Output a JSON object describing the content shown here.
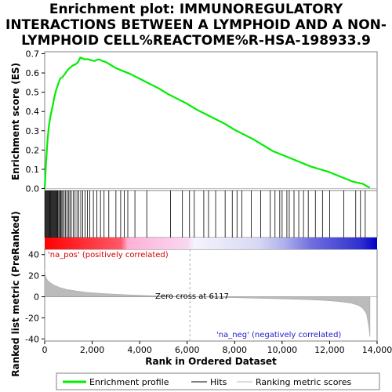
{
  "chart_data": {
    "type": "line",
    "title_lines": [
      "Enrichment plot: IMMUNOREGULATORY",
      "INTERACTIONS BETWEEN A LYMPHOID AND A NON-",
      "LYMPHOID CELL%REACTOME%R-HSA-198933.9"
    ],
    "xlabel": "Rank in Ordered Dataset",
    "ylabel_top": "Enrichment score (ES)",
    "ylabel_bottom": "Ranked list metric (PreRanked)",
    "xlim": [
      0,
      14000
    ],
    "x_ticks": [
      0,
      2000,
      4000,
      6000,
      8000,
      10000,
      12000,
      14000
    ],
    "x_tick_labels": [
      "0",
      "2,000",
      "4,000",
      "6,000",
      "8,000",
      "10,000",
      "12,000",
      "14,000"
    ],
    "es_ylim": [
      -0.01,
      0.71
    ],
    "es_ticks": [
      0.0,
      0.1,
      0.2,
      0.3,
      0.4,
      0.5,
      0.6,
      0.7
    ],
    "es_tick_labels": [
      "0.0",
      "0.1",
      "0.2",
      "0.3",
      "0.4",
      "0.5",
      "0.6",
      "0.7"
    ],
    "metric_ylim": [
      -42,
      45
    ],
    "metric_ticks": [
      40,
      20,
      0,
      -20,
      -40
    ],
    "metric_tick_labels": [
      "40",
      "20",
      "0",
      "-20",
      "-40"
    ],
    "series": [
      {
        "name": "Enrichment profile",
        "color": "#00ee00",
        "x": [
          0,
          60,
          120,
          180,
          250,
          320,
          400,
          480,
          560,
          650,
          760,
          880,
          1000,
          1100,
          1200,
          1300,
          1400,
          1500,
          1600,
          1700,
          1800,
          1900,
          2000,
          2100,
          2200,
          2300,
          2400,
          2600,
          2800,
          3000,
          3200,
          3400,
          3600,
          4000,
          4400,
          4800,
          5200,
          5600,
          6000,
          6400,
          6800,
          7200,
          7600,
          8000,
          8400,
          8800,
          9200,
          9600,
          10000,
          10400,
          10800,
          11200,
          11600,
          12000,
          12400,
          12800,
          13000,
          13200,
          13400,
          13600,
          13700
        ],
        "y": [
          0.0,
          0.14,
          0.25,
          0.33,
          0.38,
          0.42,
          0.47,
          0.51,
          0.54,
          0.57,
          0.58,
          0.6,
          0.62,
          0.63,
          0.64,
          0.645,
          0.655,
          0.68,
          0.675,
          0.67,
          0.672,
          0.668,
          0.665,
          0.662,
          0.668,
          0.67,
          0.664,
          0.655,
          0.64,
          0.625,
          0.615,
          0.605,
          0.595,
          0.57,
          0.545,
          0.52,
          0.49,
          0.465,
          0.44,
          0.41,
          0.385,
          0.36,
          0.335,
          0.305,
          0.28,
          0.255,
          0.225,
          0.195,
          0.175,
          0.155,
          0.135,
          0.115,
          0.1,
          0.085,
          0.065,
          0.045,
          0.035,
          0.03,
          0.025,
          0.01,
          0.005
        ]
      },
      {
        "name": "Hits",
        "color": "#000000",
        "positions": [
          20,
          50,
          80,
          110,
          140,
          170,
          200,
          230,
          260,
          290,
          320,
          350,
          380,
          410,
          440,
          470,
          500,
          530,
          560,
          600,
          640,
          680,
          720,
          760,
          820,
          880,
          940,
          1000,
          1060,
          1120,
          1200,
          1280,
          1360,
          1440,
          1520,
          1600,
          1700,
          1800,
          1900,
          2050,
          2200,
          2350,
          2500,
          2700,
          3000,
          3200,
          3350,
          3500,
          3800,
          4300,
          5300,
          5800,
          6100,
          6300,
          6700,
          6900,
          7200,
          7600,
          7900,
          8100,
          8300,
          8700,
          9100,
          9500,
          9700,
          9900,
          10000,
          10200,
          10300,
          10500,
          10700,
          10900,
          11100,
          11400,
          11700,
          12000,
          12600,
          13100,
          13300,
          13500
        ]
      },
      {
        "name": "Ranking metric scores",
        "color": "#bbbbbb",
        "x": [
          0,
          30,
          80,
          150,
          250,
          400,
          600,
          900,
          1300,
          1800,
          2500,
          3500,
          4500,
          5500,
          6117,
          7000,
          8000,
          9000,
          10000,
          11000,
          11800,
          12400,
          12900,
          13200,
          13400,
          13550,
          13650,
          13700
        ],
        "y": [
          26,
          20,
          17,
          15,
          13,
          11,
          9,
          7,
          5.5,
          4,
          3,
          1.8,
          1.0,
          0.4,
          0,
          -0.4,
          -0.9,
          -1.4,
          -2.0,
          -2.7,
          -3.5,
          -4.5,
          -6,
          -8,
          -11,
          -16,
          -28,
          -38
        ]
      }
    ],
    "zero_cross_label": "Zero cross at 6117",
    "zero_cross_x": 6117,
    "pos_label": "'na_pos' (positively correlated)",
    "neg_label": "'na_neg' (negatively correlated)",
    "legend": {
      "placement": "bottom",
      "items": [
        "Enrichment profile",
        "Hits",
        "Ranking metric scores"
      ]
    },
    "colors": {
      "profile": "#00ee00",
      "pos_label": "#d40000",
      "neg_label": "#1a1acc",
      "metric_fill": "#bbbbbb"
    }
  }
}
